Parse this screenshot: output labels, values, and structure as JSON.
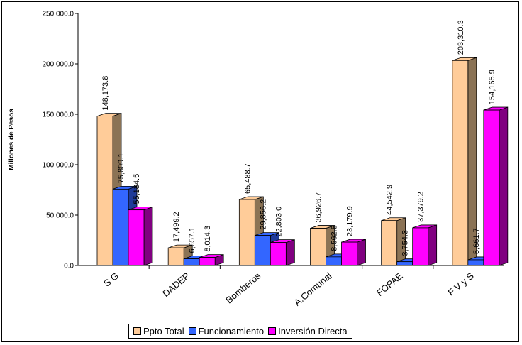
{
  "chart_data": {
    "type": "bar",
    "ylabel": "Millones de Pesos",
    "ylim": [
      0,
      250000
    ],
    "yticks": [
      {
        "value": 0,
        "label": "0.0"
      },
      {
        "value": 50000,
        "label": "50,000.0"
      },
      {
        "value": 100000,
        "label": "100,000.0"
      },
      {
        "value": 150000,
        "label": "150,000.0"
      },
      {
        "value": 200000,
        "label": "200,000.0"
      },
      {
        "value": 250000,
        "label": "250,000.0"
      }
    ],
    "categories": [
      "S G",
      "DADEP",
      "Bomberos",
      "A.Comunal",
      "FOPAE",
      "F V y S"
    ],
    "series": [
      {
        "name": "Ppto Total",
        "color": "#FFCC99",
        "side": "#8B7355",
        "values": [
          148173.8,
          17499.2,
          65488.7,
          36926.7,
          44542.9,
          203310.3
        ],
        "labels": [
          "148,173.8",
          "17,499.2",
          "65,488.7",
          "36,926.7",
          "44,542.9",
          "203,310.3"
        ]
      },
      {
        "name": "Funcionamiento",
        "color": "#3366FF",
        "side": "#1F3A99",
        "values": [
          75809.1,
          6657.1,
          29856.2,
          8562.8,
          3754.3,
          5661.7
        ],
        "labels": [
          "75,809.1",
          "6,657.1",
          "29,856.2",
          "8,562.8",
          "3,754.3",
          "5,661.7"
        ]
      },
      {
        "name": "Inversión Directa",
        "color": "#FF00FF",
        "side": "#800080",
        "values": [
          55184.5,
          8014.3,
          22803.0,
          23179.9,
          37379.2,
          154165.9
        ],
        "labels": [
          "55,184.5",
          "8,014.3",
          "22,803.0",
          "23,179.9",
          "37,379.2",
          "154,165.9"
        ]
      }
    ],
    "legend_position": "bottom",
    "grid": false
  }
}
